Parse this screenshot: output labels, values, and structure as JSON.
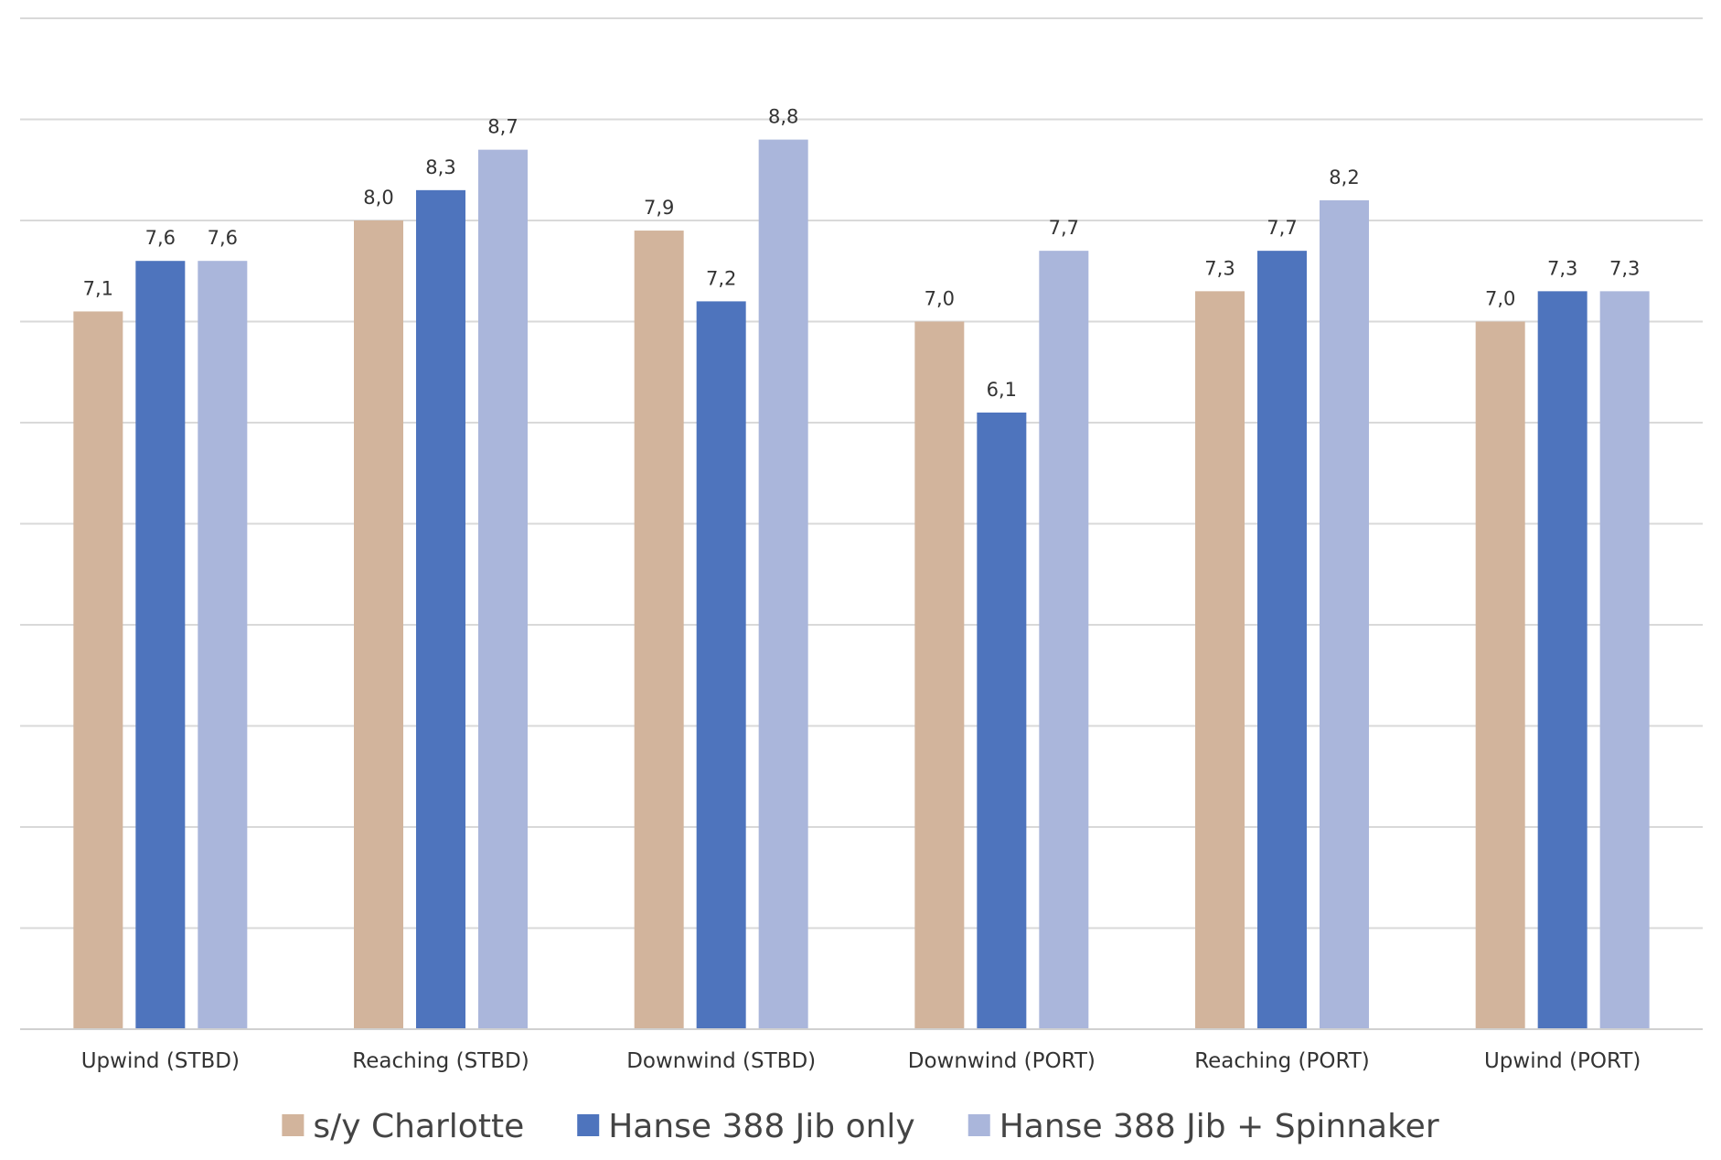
{
  "chart_data": {
    "type": "bar",
    "categories": [
      "Upwind (STBD)",
      "Reaching (STBD)",
      "Downwind (STBD)",
      "Downwind (PORT)",
      "Reaching (PORT)",
      "Upwind (PORT)"
    ],
    "series": [
      {
        "name": "s/y Charlotte",
        "values": [
          7.1,
          8.0,
          7.9,
          7.0,
          7.3,
          7.0
        ],
        "labels": [
          "7,1",
          "8,0",
          "7,9",
          "7,0",
          "7,3",
          "7,0"
        ],
        "color": "#d2b49c"
      },
      {
        "name": "Hanse 388 Jib only",
        "values": [
          7.6,
          8.3,
          7.2,
          6.1,
          7.7,
          7.3
        ],
        "labels": [
          "7,6",
          "8,3",
          "7,2",
          "6,1",
          "7,7",
          "7,3"
        ],
        "color": "#4e74bd"
      },
      {
        "name": "Hanse 388 Jib + Spinnaker",
        "values": [
          7.6,
          8.7,
          8.8,
          7.7,
          8.2,
          7.3
        ],
        "labels": [
          "7,6",
          "8,7",
          "8,8",
          "7,7",
          "8,2",
          "7,3"
        ],
        "color": "#aab6db"
      }
    ],
    "ylim": [
      0,
      10
    ],
    "y_gridlines_every": 1,
    "grid": true,
    "y_tick_labels_shown": false,
    "legend_position": "bottom",
    "data_labels_shown": true
  }
}
